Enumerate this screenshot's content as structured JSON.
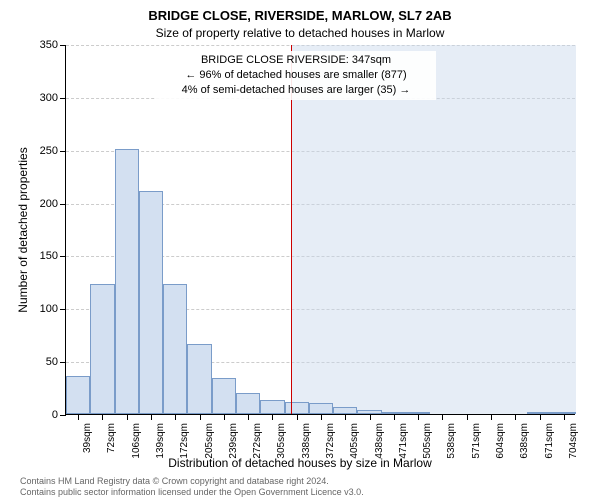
{
  "title": "BRIDGE CLOSE, RIVERSIDE, MARLOW, SL7 2AB",
  "subtitle": "Size of property relative to detached houses in Marlow",
  "y_axis_title": "Number of detached properties",
  "x_axis_title": "Distribution of detached houses by size in Marlow",
  "chart": {
    "type": "histogram",
    "ylim": [
      0,
      350
    ],
    "ytick_step": 50,
    "background_color": "#ffffff",
    "grid_color": "#cccccc",
    "bar_fill": "#d3e0f1",
    "bar_border": "#7a9cc9",
    "categories": [
      "39sqm",
      "72sqm",
      "106sqm",
      "139sqm",
      "172sqm",
      "205sqm",
      "239sqm",
      "272sqm",
      "305sqm",
      "338sqm",
      "372sqm",
      "405sqm",
      "438sqm",
      "471sqm",
      "505sqm",
      "538sqm",
      "571sqm",
      "604sqm",
      "638sqm",
      "671sqm",
      "704sqm"
    ],
    "values": [
      36,
      123,
      251,
      211,
      123,
      66,
      34,
      20,
      13,
      11,
      10,
      7,
      4,
      2,
      2,
      0,
      0,
      0,
      0,
      1,
      1
    ],
    "marker": {
      "value_sqm": 347,
      "line_color": "#cc0000",
      "shade_color": "rgba(200,215,235,0.45)"
    }
  },
  "annotation": {
    "line1": "BRIDGE CLOSE RIVERSIDE: 347sqm",
    "line2": "← 96% of detached houses are smaller (877)",
    "line3": "4% of semi-detached houses are larger (35) →"
  },
  "footer": {
    "line1": "Contains HM Land Registry data © Crown copyright and database right 2024.",
    "line2": "Contains public sector information licensed under the Open Government Licence v3.0."
  }
}
